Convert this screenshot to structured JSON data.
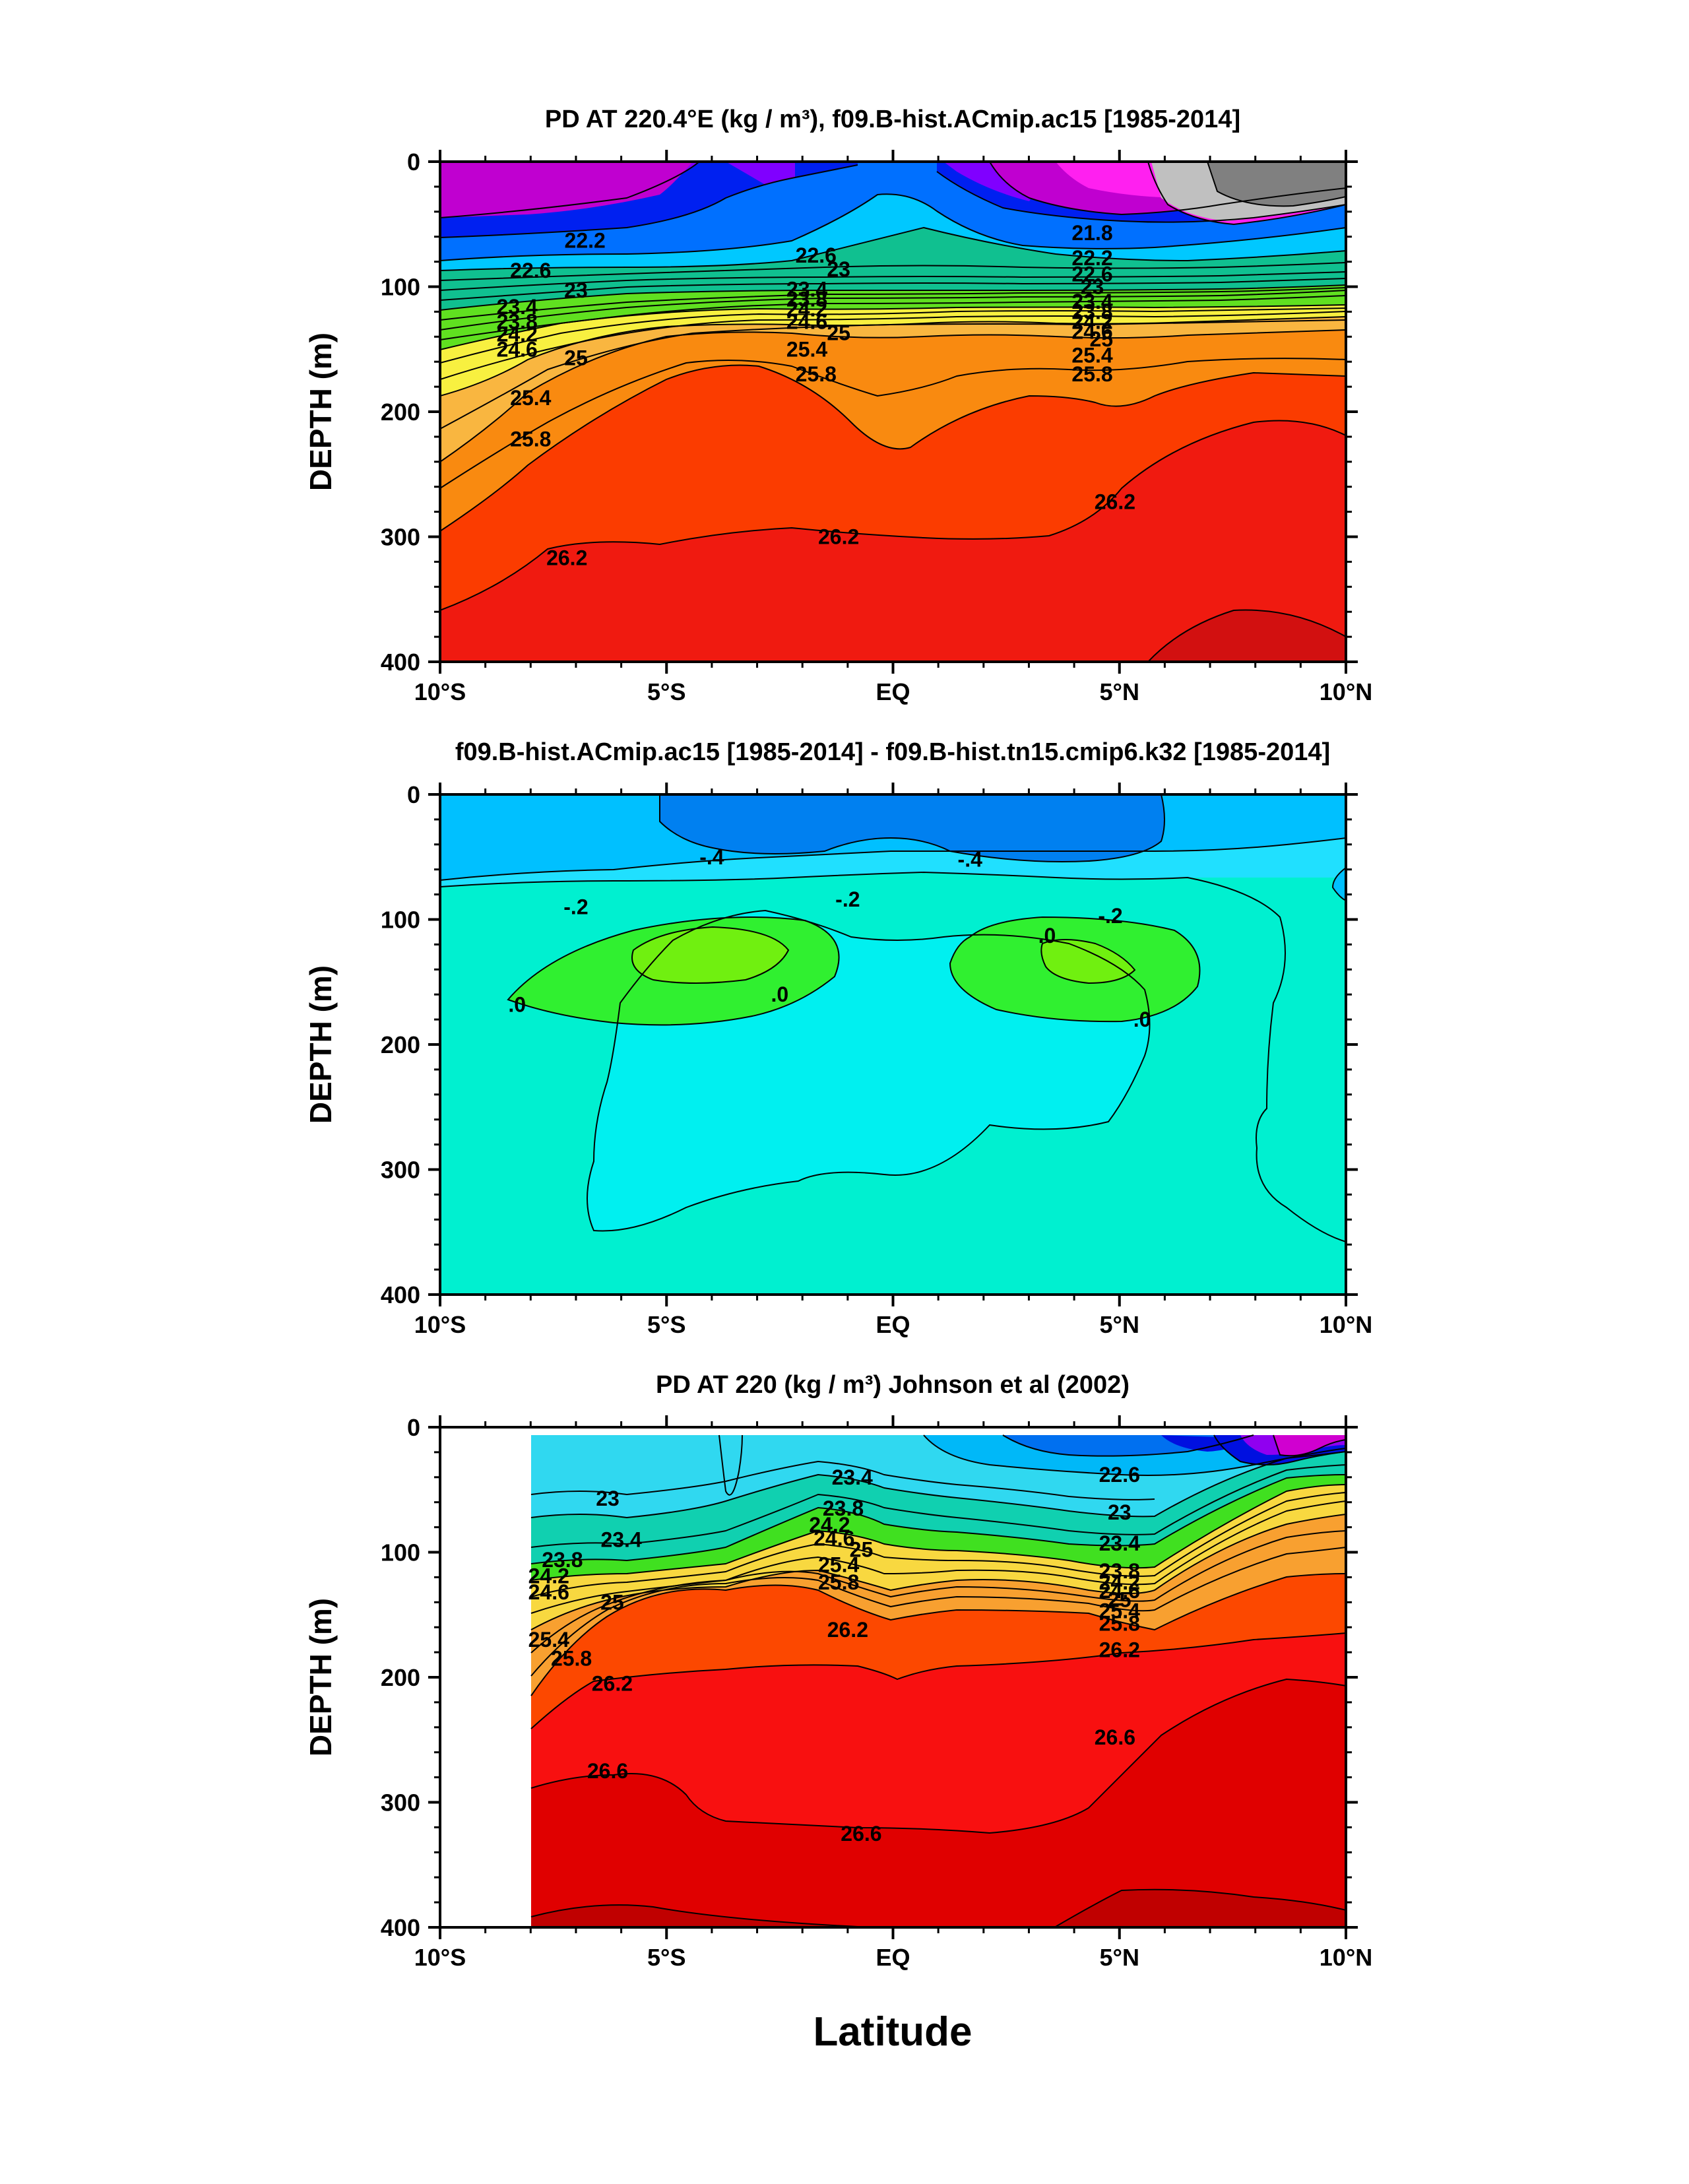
{
  "x_axis_label": "Latitude",
  "chart_data": [
    {
      "type": "contour",
      "title": "PD AT 220.4°E (kg / m³), f09.B-hist.ACmip.ac15 [1985-2014]",
      "xlabel": "",
      "ylabel": "DEPTH (m)",
      "x_ticks": [
        "10°S",
        "5°S",
        "EQ",
        "5°N",
        "10°N"
      ],
      "x_range_deg": [
        -10,
        10
      ],
      "y_ticks": [
        "0",
        "100",
        "200",
        "300",
        "400"
      ],
      "y_range_m": [
        0,
        400
      ],
      "colors": [
        "#d21010",
        "#f01a10",
        "#fb3c00",
        "#f98a10",
        "#f9b640",
        "#f8f040",
        "#60e020",
        "#10c090",
        "#00c8ff",
        "#0070ff",
        "#0020f0",
        "#8000ff",
        "#c000d0",
        "#ff20f0",
        "#c0c0c0",
        "#808080"
      ],
      "contour_labels": [
        {
          "text": "22.2",
          "lat": -6.8,
          "depth": 63
        },
        {
          "text": "22.6",
          "lat": -8.0,
          "depth": 87
        },
        {
          "text": "23",
          "lat": -7.0,
          "depth": 103
        },
        {
          "text": "23.4",
          "lat": -8.3,
          "depth": 116
        },
        {
          "text": "23.8",
          "lat": -8.3,
          "depth": 128
        },
        {
          "text": "24.2",
          "lat": -8.3,
          "depth": 138
        },
        {
          "text": "24.6",
          "lat": -8.3,
          "depth": 150
        },
        {
          "text": "25",
          "lat": -7.0,
          "depth": 157
        },
        {
          "text": "25.4",
          "lat": -8.0,
          "depth": 189
        },
        {
          "text": "25.8",
          "lat": -8.0,
          "depth": 222
        },
        {
          "text": "26.2",
          "lat": -7.2,
          "depth": 317
        },
        {
          "text": "22.6",
          "lat": -1.7,
          "depth": 75
        },
        {
          "text": "23",
          "lat": -1.2,
          "depth": 86
        },
        {
          "text": "23.4",
          "lat": -1.9,
          "depth": 102
        },
        {
          "text": "23.8",
          "lat": -1.9,
          "depth": 110
        },
        {
          "text": "24.2",
          "lat": -1.9,
          "depth": 118
        },
        {
          "text": "24.6",
          "lat": -1.9,
          "depth": 128
        },
        {
          "text": "25",
          "lat": -1.2,
          "depth": 137
        },
        {
          "text": "25.4",
          "lat": -1.9,
          "depth": 150
        },
        {
          "text": "25.8",
          "lat": -1.7,
          "depth": 170
        },
        {
          "text": "26.2",
          "lat": -1.2,
          "depth": 300
        },
        {
          "text": "21.8",
          "lat": 4.4,
          "depth": 57
        },
        {
          "text": "22.2",
          "lat": 4.4,
          "depth": 77
        },
        {
          "text": "22.6",
          "lat": 4.4,
          "depth": 90
        },
        {
          "text": "23",
          "lat": 4.4,
          "depth": 100
        },
        {
          "text": "23.4",
          "lat": 4.4,
          "depth": 112
        },
        {
          "text": "23.8",
          "lat": 4.4,
          "depth": 120
        },
        {
          "text": "24.2",
          "lat": 4.4,
          "depth": 128
        },
        {
          "text": "24.6",
          "lat": 4.4,
          "depth": 136
        },
        {
          "text": "25",
          "lat": 4.6,
          "depth": 142
        },
        {
          "text": "25.4",
          "lat": 4.4,
          "depth": 155
        },
        {
          "text": "25.8",
          "lat": 4.4,
          "depth": 170
        },
        {
          "text": "26.2",
          "lat": 4.9,
          "depth": 272
        }
      ]
    },
    {
      "type": "contour",
      "title": "f09.B-hist.ACmip.ac15 [1985-2014] - f09.B-hist.tn15.cmip6.k32 [1985-2014]",
      "xlabel": "",
      "ylabel": "DEPTH (m)",
      "x_ticks": [
        "10°S",
        "5°S",
        "EQ",
        "5°N",
        "10°N"
      ],
      "x_range_deg": [
        -10,
        10
      ],
      "y_ticks": [
        "0",
        "100",
        "200",
        "300",
        "400"
      ],
      "y_range_m": [
        0,
        400
      ],
      "colors": [
        "#00f0d0",
        "#00f0f0",
        "#20e0ff",
        "#00c0ff",
        "#0080f0",
        "#30f030",
        "#70f010"
      ],
      "contour_labels": [
        {
          "text": "-.4",
          "lat": -4.0,
          "depth": 50
        },
        {
          "text": "-.4",
          "lat": 1.7,
          "depth": 52
        },
        {
          "text": "-.2",
          "lat": -7.0,
          "depth": 90
        },
        {
          "text": "-.2",
          "lat": -1.0,
          "depth": 84
        },
        {
          "text": "-.2",
          "lat": 4.8,
          "depth": 97
        },
        {
          "text": ".0",
          "lat": 3.4,
          "depth": 113
        },
        {
          "text": ".0",
          "lat": -8.3,
          "depth": 168
        },
        {
          "text": ".0",
          "lat": -2.5,
          "depth": 160
        },
        {
          "text": ".0",
          "lat": 5.5,
          "depth": 180
        }
      ]
    },
    {
      "type": "contour",
      "title": "PD AT 220 (kg / m³) Johnson et al (2002)",
      "xlabel": "Latitude",
      "ylabel": "DEPTH (m)",
      "x_ticks": [
        "10°S",
        "5°S",
        "EQ",
        "5°N",
        "10°N"
      ],
      "x_range_deg": [
        -10,
        10
      ],
      "data_lat_range": [
        -8,
        10
      ],
      "y_ticks": [
        "0",
        "100",
        "200",
        "300",
        "400"
      ],
      "y_range_m": [
        0,
        400
      ],
      "colors": [
        "#c00000",
        "#e00000",
        "#f81010",
        "#fc4800",
        "#f8a030",
        "#f8d840",
        "#40e020",
        "#10d0b0",
        "#30d8f0",
        "#00b8f8",
        "#0070f0",
        "#0010e0",
        "#9000f0",
        "#d000d0"
      ],
      "contour_labels": [
        {
          "text": "23",
          "lat": -6.3,
          "depth": 57
        },
        {
          "text": "23.4",
          "lat": -6.0,
          "depth": 90
        },
        {
          "text": "23.8",
          "lat": -7.3,
          "depth": 106
        },
        {
          "text": "24.2",
          "lat": -7.6,
          "depth": 119
        },
        {
          "text": "24.6",
          "lat": -7.6,
          "depth": 132
        },
        {
          "text": "25",
          "lat": -6.2,
          "depth": 140
        },
        {
          "text": "25.4",
          "lat": -7.6,
          "depth": 170
        },
        {
          "text": "25.8",
          "lat": -7.1,
          "depth": 185
        },
        {
          "text": "26.2",
          "lat": -6.2,
          "depth": 205
        },
        {
          "text": "26.6",
          "lat": -6.3,
          "depth": 275
        },
        {
          "text": "23.4",
          "lat": -0.9,
          "depth": 40
        },
        {
          "text": "23.8",
          "lat": -1.1,
          "depth": 65
        },
        {
          "text": "24.2",
          "lat": -1.4,
          "depth": 78
        },
        {
          "text": "24.6",
          "lat": -1.3,
          "depth": 89
        },
        {
          "text": "25",
          "lat": -0.7,
          "depth": 98
        },
        {
          "text": "25.4",
          "lat": -1.2,
          "depth": 110
        },
        {
          "text": "25.8",
          "lat": -1.2,
          "depth": 124
        },
        {
          "text": "26.2",
          "lat": -1.0,
          "depth": 162
        },
        {
          "text": "26.6",
          "lat": -0.7,
          "depth": 325
        },
        {
          "text": "22.6",
          "lat": 5.0,
          "depth": 38
        },
        {
          "text": "23",
          "lat": 5.0,
          "depth": 68
        },
        {
          "text": "23.4",
          "lat": 5.0,
          "depth": 93
        },
        {
          "text": "23.8",
          "lat": 5.0,
          "depth": 115
        },
        {
          "text": "24.2",
          "lat": 5.0,
          "depth": 124
        },
        {
          "text": "24.6",
          "lat": 5.0,
          "depth": 131
        },
        {
          "text": "25",
          "lat": 5.0,
          "depth": 138
        },
        {
          "text": "25.4",
          "lat": 5.0,
          "depth": 147
        },
        {
          "text": "25.8",
          "lat": 5.0,
          "depth": 157
        },
        {
          "text": "26.2",
          "lat": 5.0,
          "depth": 178
        },
        {
          "text": "26.6",
          "lat": 4.9,
          "depth": 248
        }
      ]
    }
  ]
}
